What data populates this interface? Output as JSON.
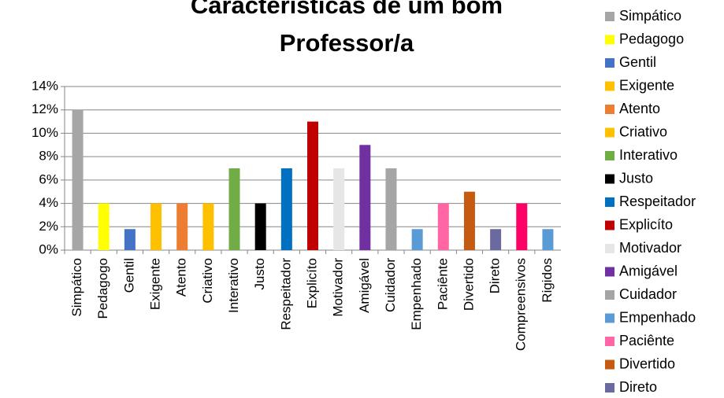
{
  "chart_data": {
    "type": "bar",
    "title": "Características de um bom Professor/a",
    "categories": [
      "Simpático",
      "Pedagogo",
      "Gentil",
      "Exigente",
      "Atento",
      "Criativo",
      "Interativo",
      "Justo",
      "Respeitador",
      "Explicíto",
      "Motivador",
      "Amigável",
      "Cuidador",
      "Empenhado",
      "Paciênte",
      "Divertido",
      "Direto",
      "Compreensivos",
      "Rigidos"
    ],
    "values": [
      12,
      4,
      1.8,
      4,
      4,
      4,
      7,
      4,
      7,
      11,
      7,
      9,
      7,
      1.8,
      4,
      5,
      1.8,
      4,
      1.8
    ],
    "colors": [
      "#a6a6a6",
      "#ffff00",
      "#4472c4",
      "#ffc000",
      "#ed7d31",
      "#ffc000",
      "#70ad47",
      "#000000",
      "#0070c0",
      "#c00000",
      "#e7e6e6",
      "#7030a0",
      "#a5a5a5",
      "#5b9bd5",
      "#ff66a3",
      "#c55a11",
      "#6a6aa0",
      "#ff0066",
      "#5b9bd5"
    ],
    "ylim": [
      0,
      14
    ],
    "yticks": [
      {
        "value": 0,
        "label": "0%"
      },
      {
        "value": 2,
        "label": "2%"
      },
      {
        "value": 4,
        "label": "4%"
      },
      {
        "value": 6,
        "label": "6%"
      },
      {
        "value": 8,
        "label": "8%"
      },
      {
        "value": 10,
        "label": "10%"
      },
      {
        "value": 12,
        "label": "12%"
      },
      {
        "value": 14,
        "label": "14%"
      }
    ],
    "grid": true,
    "legend": "right"
  }
}
